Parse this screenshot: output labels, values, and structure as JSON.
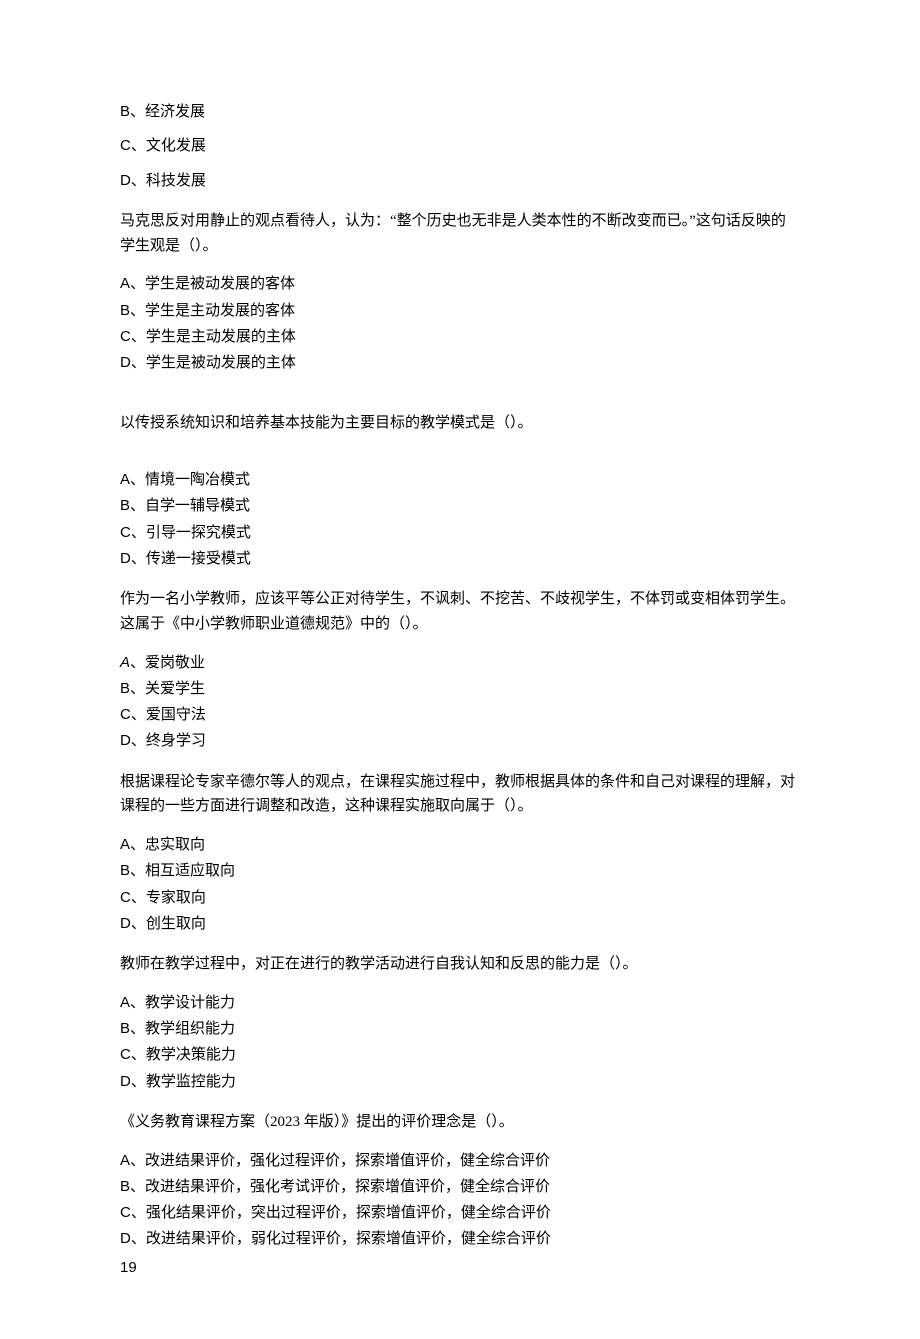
{
  "block1": {
    "options": [
      {
        "letter": "B",
        "text": "经济发展"
      },
      {
        "letter": "C",
        "text": "文化发展"
      },
      {
        "letter": "D",
        "text": "科技发展"
      }
    ]
  },
  "q2": {
    "stem": "马克思反对用静止的观点看待人，认为：“整个历史也无非是人类本性的不断改变而已。”这句话反映的学生观是（）。",
    "options": [
      {
        "letter": "A",
        "text": "学生是被动发展的客体"
      },
      {
        "letter": "B",
        "text": "学生是主动发展的客体"
      },
      {
        "letter": "C",
        "text": "学生是主动发展的主体"
      },
      {
        "letter": "D",
        "text": "学生是被动发展的主体"
      }
    ]
  },
  "q3": {
    "stem": "以传授系统知识和培养基本技能为主要目标的教学模式是（）。",
    "options": [
      {
        "letter": "A",
        "text": "情境一陶冶模式"
      },
      {
        "letter": "B",
        "text": "自学一辅导模式"
      },
      {
        "letter": "C",
        "text": "引导一探究模式"
      },
      {
        "letter": "D",
        "text": "传递一接受模式"
      }
    ]
  },
  "q4": {
    "stem": "作为一名小学教师，应该平等公正对待学生，不讽刺、不挖苦、不歧视学生，不体罚或变相体罚学生。这属于《中小学教师职业道德规范》中的（）。",
    "options": [
      {
        "letter": "A",
        "text": "爱岗敬业"
      },
      {
        "letter": "B",
        "text": "关爱学生"
      },
      {
        "letter": "C",
        "text": "爱国守法"
      },
      {
        "letter": "D",
        "text": "终身学习"
      }
    ]
  },
  "q5": {
    "stem": "根据课程论专家辛德尔等人的观点，在课程实施过程中，教师根据具体的条件和自己对课程的理解，对课程的一些方面进行调整和改造，这种课程实施取向属于（）。",
    "options": [
      {
        "letter": "A",
        "text": "忠实取向"
      },
      {
        "letter": "B",
        "text": "相互适应取向"
      },
      {
        "letter": "C",
        "text": "专家取向"
      },
      {
        "letter": "D",
        "text": "创生取向"
      }
    ]
  },
  "q6": {
    "stem": "教师在教学过程中，对正在进行的教学活动进行自我认知和反思的能力是（）。",
    "options": [
      {
        "letter": "A",
        "text": "教学设计能力"
      },
      {
        "letter": "B",
        "text": "教学组织能力"
      },
      {
        "letter": "C",
        "text": "教学决策能力"
      },
      {
        "letter": "D",
        "text": "教学监控能力"
      }
    ]
  },
  "q7": {
    "stem": "《义务教育课程方案（2023 年版）》提出的评价理念是（）。",
    "options": [
      {
        "letter": "A",
        "text": "改进结果评价，强化过程评价，探索增值评价，健全综合评价"
      },
      {
        "letter": "B",
        "text": "改进结果评价，强化考试评价，探索增值评价，健全综合评价"
      },
      {
        "letter": "C",
        "text": "强化结果评价，突出过程评价，探索增值评价，健全综合评价"
      },
      {
        "letter": "D",
        "text": "改进结果评价，弱化过程评价，探索增值评价，健全综合评价"
      }
    ]
  },
  "pageNumber": "19"
}
